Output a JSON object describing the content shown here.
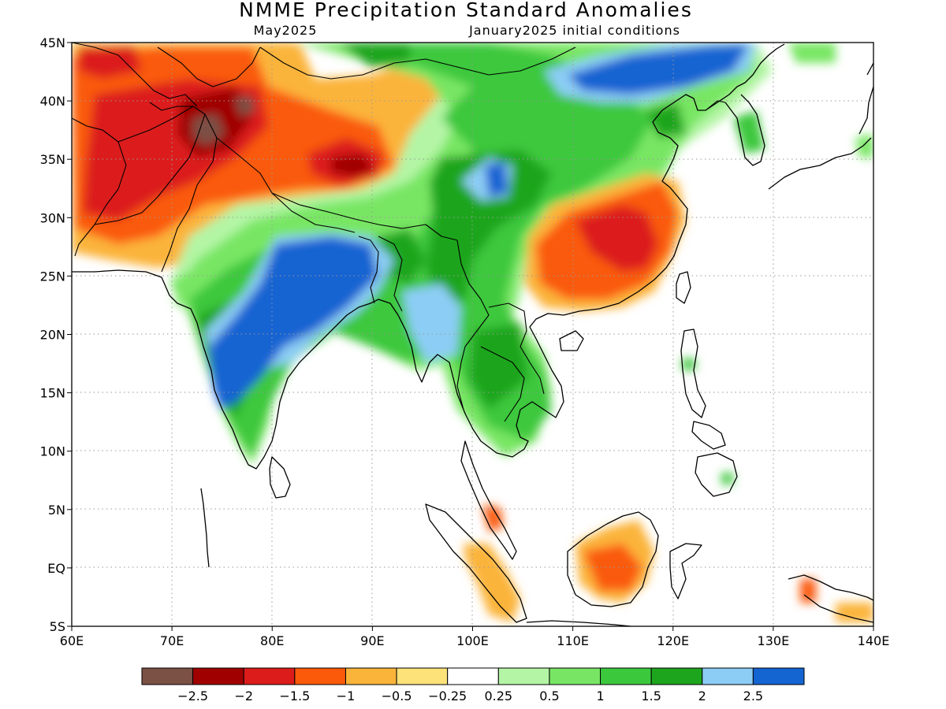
{
  "title": "NMME Precipitation Standard Anomalies",
  "target_month": "May2025",
  "initial_conditions": "January2025 initial conditions",
  "lat_labels": [
    "45N",
    "40N",
    "35N",
    "30N",
    "25N",
    "20N",
    "15N",
    "10N",
    "5N",
    "EQ",
    "5S"
  ],
  "lon_labels": [
    "60E",
    "70E",
    "80E",
    "90E",
    "100E",
    "110E",
    "120E",
    "130E",
    "140E"
  ],
  "lat_range": [
    -5,
    45
  ],
  "lon_range": [
    60,
    140
  ],
  "legend": {
    "colors": [
      "#7b5045",
      "#a00000",
      "#dc1b1b",
      "#fa5a0a",
      "#fbb43a",
      "#fde27a",
      "#ffffff",
      "#b4f5a5",
      "#78e664",
      "#3cc83c",
      "#1ea51e",
      "#8ccdf5",
      "#1464d2"
    ],
    "labels": [
      "−2.5",
      "−2",
      "−1.5",
      "−1",
      "−0.5",
      "−0.25",
      "0.25",
      "0.5",
      "1",
      "1.5",
      "2",
      "2.5"
    ]
  }
}
